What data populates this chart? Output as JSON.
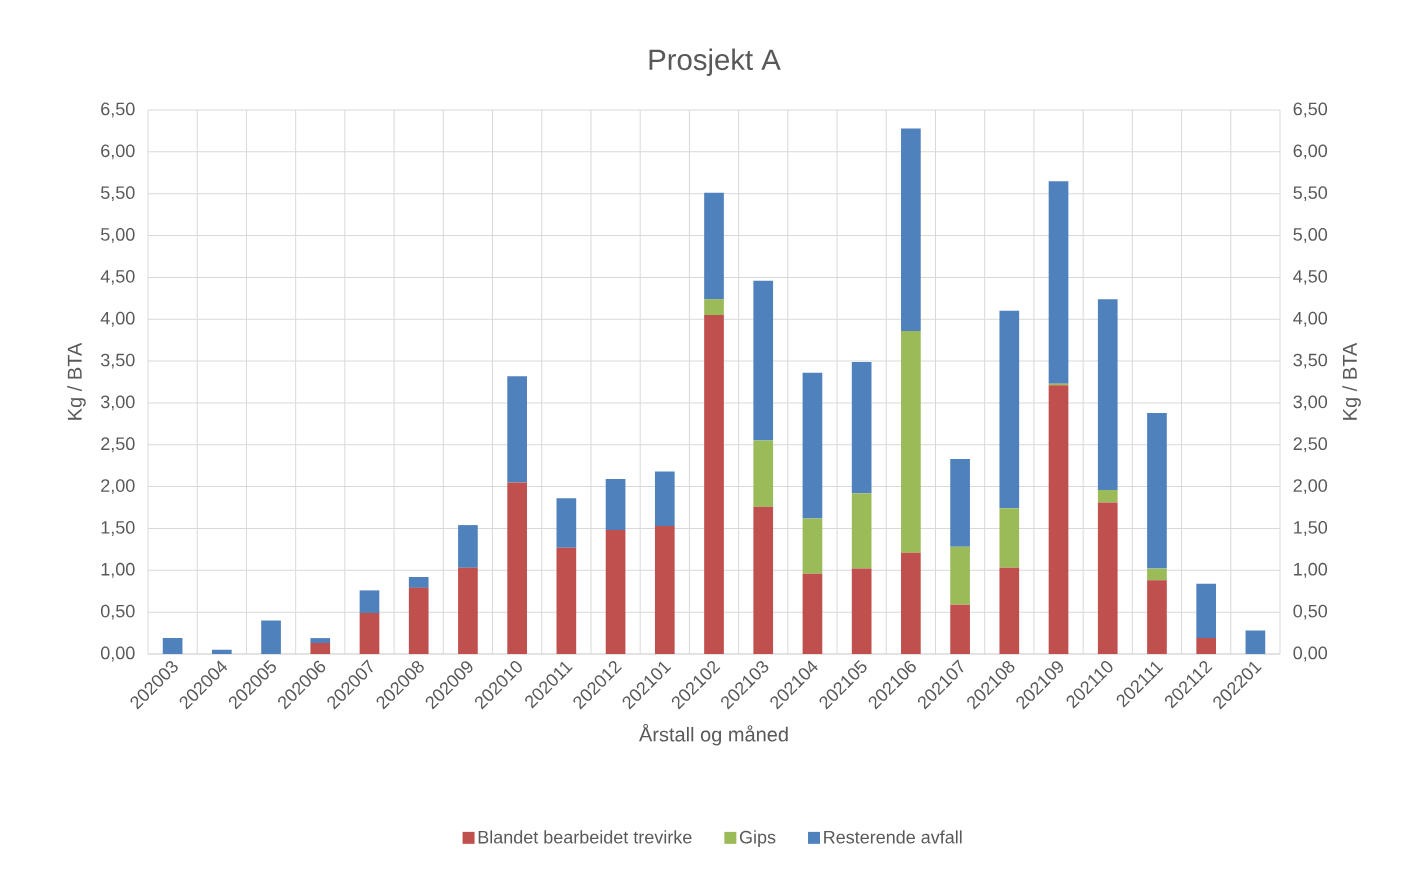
{
  "chart_data": {
    "type": "bar",
    "title": "Prosjekt A",
    "xlabel": "Årstall og måned",
    "ylabel": "Kg / BTA",
    "y2label": "Kg / BTA",
    "categories": [
      "202003",
      "202004",
      "202005",
      "202006",
      "202007",
      "202008",
      "202009",
      "202010",
      "202011",
      "202012",
      "202101",
      "202102",
      "202103",
      "202104",
      "202105",
      "202106",
      "202107",
      "202108",
      "202109",
      "202110",
      "202111",
      "202112",
      "202201"
    ],
    "stacked": true,
    "series": [
      {
        "name": "Blandet bearbeidet trevirke",
        "color": "#c0504d",
        "values": [
          0,
          0,
          0,
          0.13,
          0.49,
          0.79,
          1.03,
          2.05,
          1.27,
          1.48,
          1.53,
          4.05,
          1.76,
          0.96,
          1.02,
          1.21,
          0.59,
          1.03,
          3.21,
          1.81,
          0.88,
          0.19,
          0
        ]
      },
      {
        "name": "Gips",
        "color": "#9bbb59",
        "values": [
          0,
          0,
          0,
          0,
          0,
          0,
          0,
          0,
          0,
          0,
          0,
          0.19,
          0.79,
          0.66,
          0.9,
          2.65,
          0.69,
          0.71,
          0.02,
          0.15,
          0.14,
          0,
          0
        ]
      },
      {
        "name": "Resterende avfall",
        "color": "#4f81bd",
        "values": [
          0.19,
          0.05,
          0.4,
          0.06,
          0.27,
          0.13,
          0.51,
          1.27,
          0.59,
          0.61,
          0.65,
          1.27,
          1.91,
          1.74,
          1.57,
          2.42,
          1.05,
          2.36,
          2.42,
          2.28,
          1.86,
          0.65,
          0.28
        ]
      }
    ],
    "ylim": [
      0,
      6.5
    ],
    "yticks": [
      {
        "value": 0,
        "label": "0,00"
      },
      {
        "value": 0.5,
        "label": "0,50"
      },
      {
        "value": 1,
        "label": "1,00"
      },
      {
        "value": 1.5,
        "label": "1,50"
      },
      {
        "value": 2,
        "label": "2,00"
      },
      {
        "value": 2.5,
        "label": "2,50"
      },
      {
        "value": 3,
        "label": "3,00"
      },
      {
        "value": 3.5,
        "label": "3,50"
      },
      {
        "value": 4,
        "label": "4,00"
      },
      {
        "value": 4.5,
        "label": "4,50"
      },
      {
        "value": 5,
        "label": "5,00"
      },
      {
        "value": 5.5,
        "label": "5,50"
      },
      {
        "value": 6,
        "label": "6,00"
      },
      {
        "value": 6.5,
        "label": "6,50"
      }
    ],
    "y2lim": [
      0,
      6.5
    ],
    "y2ticks": [
      {
        "value": 0,
        "label": "0,00"
      },
      {
        "value": 0.5,
        "label": "0,50"
      },
      {
        "value": 1,
        "label": "1,00"
      },
      {
        "value": 1.5,
        "label": "1,50"
      },
      {
        "value": 2,
        "label": "2,00"
      },
      {
        "value": 2.5,
        "label": "2,50"
      },
      {
        "value": 3,
        "label": "3,00"
      },
      {
        "value": 3.5,
        "label": "3,50"
      },
      {
        "value": 4,
        "label": "4,00"
      },
      {
        "value": 4.5,
        "label": "4,50"
      },
      {
        "value": 5,
        "label": "5,00"
      },
      {
        "value": 5.5,
        "label": "5,50"
      },
      {
        "value": 6,
        "label": "6,00"
      },
      {
        "value": 6.5,
        "label": "6,50"
      }
    ],
    "grid": true,
    "legend": "bottom"
  }
}
